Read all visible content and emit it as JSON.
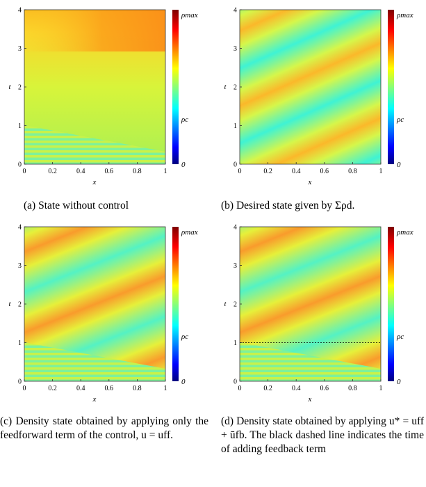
{
  "colorbar": {
    "labels": [
      "ρmax",
      "ρc",
      "0"
    ],
    "colormap": "jet"
  },
  "chart_data": [
    {
      "type": "heatmap",
      "panel": "a",
      "xlabel": "x",
      "ylabel": "t",
      "xlim": [
        0,
        1
      ],
      "ylim": [
        0,
        4
      ],
      "xticks": [
        "0",
        "0.2",
        "0.4",
        "0.6",
        "0.8",
        "1"
      ],
      "yticks": [
        "0",
        "1",
        "2",
        "3",
        "4"
      ],
      "caption_label": "(a)",
      "caption": "State without control"
    },
    {
      "type": "heatmap",
      "panel": "b",
      "xlabel": "x",
      "ylabel": "t",
      "xlim": [
        0,
        1
      ],
      "ylim": [
        0,
        4
      ],
      "xticks": [
        "0",
        "0.2",
        "0.4",
        "0.6",
        "0.8",
        "1"
      ],
      "yticks": [
        "0",
        "1",
        "2",
        "3",
        "4"
      ],
      "caption_label": "(b)",
      "caption": "Desired state given by Σρd."
    },
    {
      "type": "heatmap",
      "panel": "c",
      "xlabel": "x",
      "ylabel": "t",
      "xlim": [
        0,
        1
      ],
      "ylim": [
        0,
        4
      ],
      "xticks": [
        "0",
        "0.2",
        "0.4",
        "0.6",
        "0.8",
        "1"
      ],
      "yticks": [
        "0",
        "1",
        "2",
        "3",
        "4"
      ],
      "caption_label": "(c)",
      "caption": "Density state obtained by applying only the feedforward term of the control, u = uff."
    },
    {
      "type": "heatmap",
      "panel": "d",
      "xlabel": "x",
      "ylabel": "t",
      "xlim": [
        0,
        1
      ],
      "ylim": [
        0,
        4
      ],
      "xticks": [
        "0",
        "0.2",
        "0.4",
        "0.6",
        "0.8",
        "1"
      ],
      "yticks": [
        "0",
        "1",
        "2",
        "3",
        "4"
      ],
      "dashed_line_t": 1,
      "caption_label": "(d)",
      "caption": "Density state obtained by applying u* = uff + ūfb. The black dashed line indicates the time of adding feedback term"
    }
  ]
}
